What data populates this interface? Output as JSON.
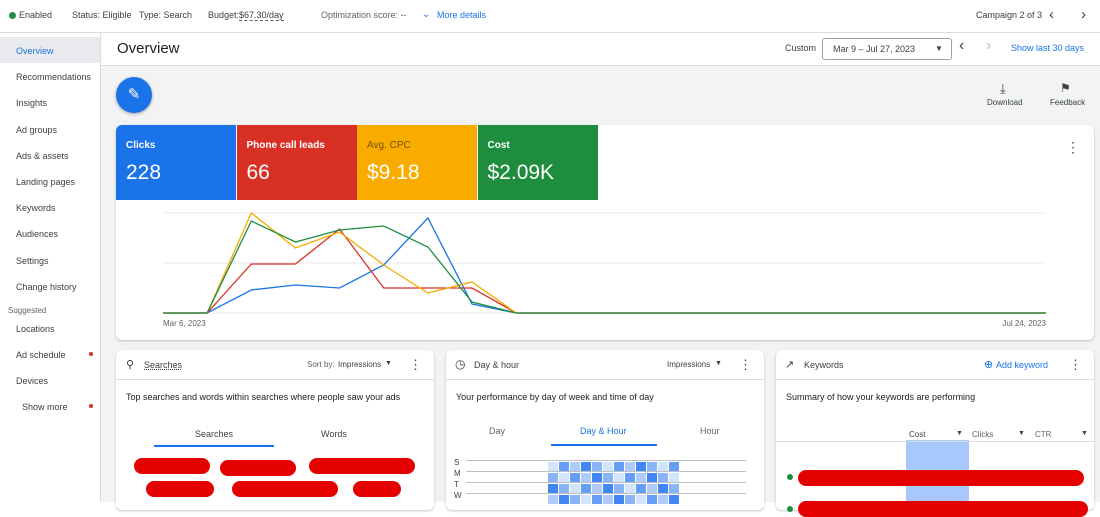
{
  "top_bar": {
    "status": "Enabled",
    "eligibility": "Status: Eligible",
    "type": "Type: Search",
    "budget_label": "Budget:",
    "budget": "$67.30/day",
    "optimization": "Optimization score: --",
    "more_details": "More details",
    "campaign": "Campaign 2 of 3"
  },
  "sidebar": {
    "items": [
      "Overview",
      "Recommendations",
      "Insights",
      "Ad groups",
      "Ads & assets",
      "Landing pages",
      "Keywords",
      "Audiences",
      "Settings",
      "Change history"
    ],
    "suggested_heading": "Suggested",
    "suggested": [
      "Locations",
      "Ad schedule",
      "Devices"
    ],
    "show_more": "Show more"
  },
  "header": {
    "title": "Overview",
    "custom": "Custom",
    "date_range": "Mar 9 – Jul 27, 2023",
    "show_last": "Show last 30 days"
  },
  "toolbar": {
    "download": "Download",
    "feedback": "Feedback"
  },
  "chart_data": {
    "type": "line",
    "categories": [
      "Mar 6, 2023",
      null,
      null,
      null,
      null,
      null,
      null,
      null,
      null,
      null,
      null,
      null,
      null,
      null,
      null,
      null,
      null,
      null,
      null,
      null,
      "Jul 24, 2023"
    ],
    "ylim": [
      0,
      100
    ],
    "series": [
      {
        "name": "Clicks",
        "total": "228",
        "color": "#1a73e8",
        "values": [
          0,
          0,
          23,
          28,
          25,
          48,
          95,
          9,
          0,
          0,
          0,
          0,
          0,
          0,
          0,
          0,
          0,
          0,
          0,
          0,
          0
        ]
      },
      {
        "name": "Phone call leads",
        "total": "66",
        "color": "#d93025",
        "values": [
          0,
          0,
          49,
          49,
          84,
          25,
          25,
          25,
          0,
          0,
          0,
          0,
          0,
          0,
          0,
          0,
          0,
          0,
          0,
          0,
          0
        ]
      },
      {
        "name": "Avg. CPC",
        "total": "$9.18",
        "color": "#f9ab00",
        "values": [
          0,
          0,
          100,
          65,
          81,
          48,
          20,
          31,
          0,
          0,
          0,
          0,
          0,
          0,
          0,
          0,
          0,
          0,
          0,
          0,
          0
        ]
      },
      {
        "name": "Cost",
        "total": "$2.09K",
        "color": "#1e8e3e",
        "values": [
          0,
          0,
          92,
          71,
          83,
          87,
          66,
          11,
          0,
          0,
          0,
          0,
          0,
          0,
          0,
          0,
          0,
          0,
          0,
          0,
          0
        ]
      }
    ]
  },
  "cards": [
    {
      "title": "Searches",
      "sort_label": "Sort by:",
      "sort_value": "Impressions",
      "description": "Top searches and words within searches where people saw your ads",
      "tabs": [
        "Searches",
        "Words"
      ]
    },
    {
      "title": "Day & hour",
      "sort_value": "Impressions",
      "description": "Your performance by day of week and time of day",
      "tabs": [
        "Day",
        "Day & Hour",
        "Hour"
      ],
      "days": [
        "S",
        "M",
        "T",
        "W"
      ]
    },
    {
      "title": "Keywords",
      "action": "Add keyword",
      "description": "Summary of how your keywords are performing",
      "columns": [
        "Cost",
        "Clicks",
        "CTR"
      ]
    }
  ]
}
